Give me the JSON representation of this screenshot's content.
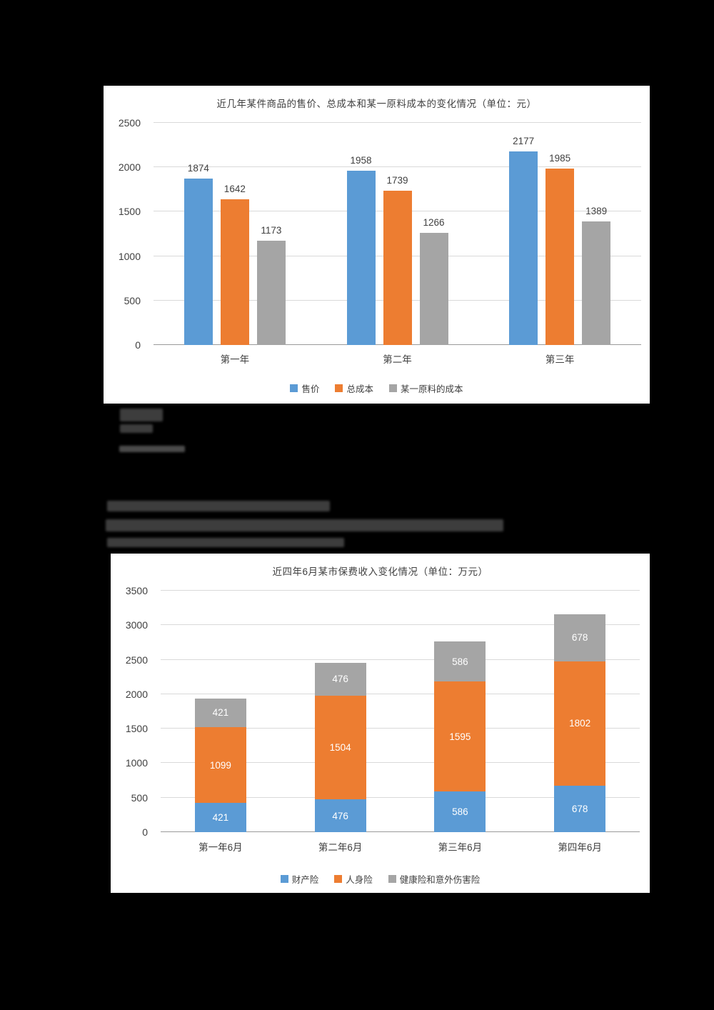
{
  "page": {
    "background_color": "#000000",
    "panel_color": "#ffffff"
  },
  "colors": {
    "series_blue": "#5B9BD5",
    "series_orange": "#ED7D31",
    "series_gray": "#A5A5A5",
    "text": "#404040",
    "gridline": "#D9D9D9"
  },
  "chart_data": [
    {
      "type": "bar",
      "stacked": false,
      "title": "近几年某件商品的售价、总成本和某一原料成本的变化情况（单位：元）",
      "categories": [
        "第一年",
        "第二年",
        "第三年"
      ],
      "series": [
        {
          "name": "售价",
          "color": "#5B9BD5",
          "values": [
            1874,
            1958,
            2177
          ]
        },
        {
          "name": "总成本",
          "color": "#ED7D31",
          "values": [
            1642,
            1739,
            1985
          ]
        },
        {
          "name": "某一原料的成本",
          "color": "#A5A5A5",
          "values": [
            1173,
            1266,
            1389
          ]
        }
      ],
      "ylim": [
        0,
        2500
      ],
      "ytick_step": 500,
      "grid": true,
      "legend_position": "bottom",
      "value_labels": "above"
    },
    {
      "type": "bar",
      "stacked": true,
      "title": "近四年6月某市保费收入变化情况（单位：万元）",
      "categories": [
        "第一年6月",
        "第二年6月",
        "第三年6月",
        "第四年6月"
      ],
      "series": [
        {
          "name": "财产险",
          "color": "#5B9BD5",
          "values": [
            421,
            476,
            586,
            678
          ]
        },
        {
          "name": "人身险",
          "color": "#ED7D31",
          "values": [
            1099,
            1504,
            1595,
            1802
          ]
        },
        {
          "name": "健康险和意外伤害险",
          "color": "#A5A5A5",
          "values": [
            421,
            476,
            586,
            678
          ]
        }
      ],
      "ylim": [
        0,
        3500
      ],
      "ytick_step": 500,
      "grid": true,
      "legend_position": "bottom",
      "value_labels": "inside"
    }
  ]
}
